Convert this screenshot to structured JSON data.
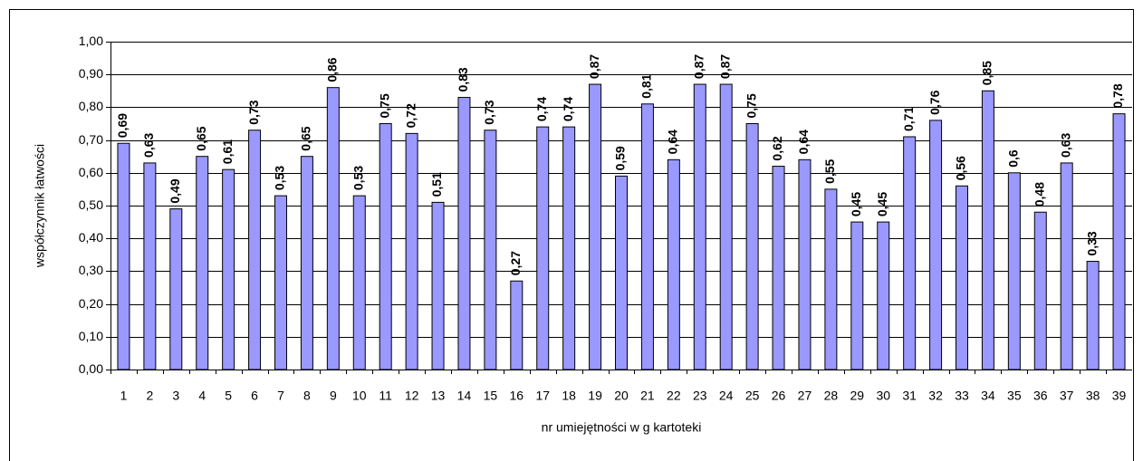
{
  "chart_data": {
    "type": "bar",
    "y_label": "współczynnik łatwości",
    "x_label": "nr umiejętności w g kartoteki",
    "categories": [
      "1",
      "2",
      "3",
      "4",
      "5",
      "6",
      "7",
      "8",
      "9",
      "10",
      "11",
      "12",
      "13",
      "14",
      "15",
      "16",
      "17",
      "18",
      "19",
      "20",
      "21",
      "22",
      "23",
      "24",
      "25",
      "26",
      "27",
      "28",
      "29",
      "30",
      "31",
      "32",
      "33",
      "34",
      "35",
      "36",
      "37",
      "38",
      "39"
    ],
    "values": [
      0.69,
      0.63,
      0.49,
      0.65,
      0.61,
      0.73,
      0.53,
      0.65,
      0.86,
      0.53,
      0.75,
      0.72,
      0.51,
      0.83,
      0.73,
      0.27,
      0.74,
      0.74,
      0.87,
      0.59,
      0.81,
      0.64,
      0.87,
      0.87,
      0.75,
      0.62,
      0.64,
      0.55,
      0.45,
      0.45,
      0.71,
      0.76,
      0.56,
      0.85,
      0.6,
      0.48,
      0.63,
      0.33,
      0.78
    ],
    "value_labels": [
      "0,69",
      "0,63",
      "0,49",
      "0,65",
      "0,61",
      "0,73",
      "0,53",
      "0,65",
      "0,86",
      "0,53",
      "0,75",
      "0,72",
      "0,51",
      "0,83",
      "0,73",
      "0,27",
      "0,74",
      "0,74",
      "0,87",
      "0,59",
      "0,81",
      "0,64",
      "0,87",
      "0,87",
      "0,75",
      "0,62",
      "0,64",
      "0,55",
      "0,45",
      "0,45",
      "0,71",
      "0,76",
      "0,56",
      "0,85",
      "0,6",
      "0,48",
      "0,63",
      "0,33",
      "0,78"
    ],
    "color": "#9999ff",
    "ylim": [
      0,
      1
    ],
    "yticks": [
      {
        "value": 0,
        "label": "0,00"
      },
      {
        "value": 0.1,
        "label": "0,10"
      },
      {
        "value": 0.2,
        "label": "0,20"
      },
      {
        "value": 0.3,
        "label": "0,30"
      },
      {
        "value": 0.4,
        "label": "0,40"
      },
      {
        "value": 0.5,
        "label": "0,50"
      },
      {
        "value": 0.6,
        "label": "0,60"
      },
      {
        "value": 0.7,
        "label": "0,70"
      },
      {
        "value": 0.8,
        "label": "0,80"
      },
      {
        "value": 0.9,
        "label": "0,90"
      },
      {
        "value": 1,
        "label": "1,00"
      }
    ],
    "grid": true
  }
}
